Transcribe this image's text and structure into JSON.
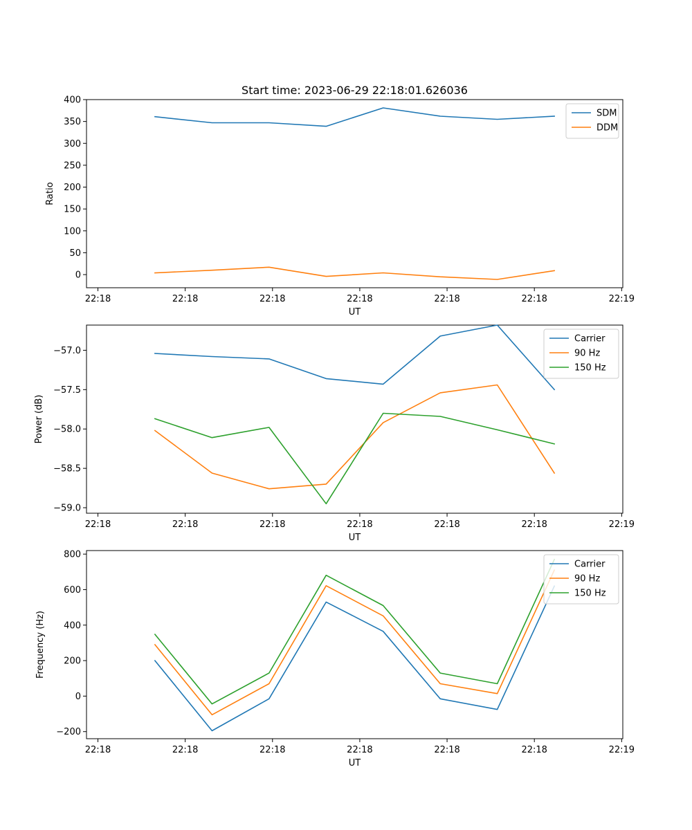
{
  "figure": {
    "title": "Start time: 2023-06-29 22:18:01.626036"
  },
  "chart_data": [
    {
      "type": "line",
      "title": "Start time: 2023-06-29 22:18:01.626036",
      "xlabel": "UT",
      "ylabel": "Ratio",
      "x": [
        1,
        2,
        3,
        4,
        5,
        6,
        7,
        8
      ],
      "x_tick_values": [
        0,
        1.53,
        3.06,
        4.59,
        6.12,
        7.65,
        9.18
      ],
      "x_tick_labels": [
        "22:18",
        "22:18",
        "22:18",
        "22:18",
        "22:18",
        "22:18",
        "22:19"
      ],
      "xlim": [
        -0.2,
        9.2
      ],
      "ylim": [
        -30,
        400
      ],
      "y_tick_values": [
        0,
        50,
        100,
        150,
        200,
        250,
        300,
        350,
        400
      ],
      "y_tick_labels": [
        "0",
        "50",
        "100",
        "150",
        "200",
        "250",
        "300",
        "350",
        "400"
      ],
      "grid": false,
      "legend_position": "top-right",
      "series": [
        {
          "name": "SDM",
          "color": "#1f77b4",
          "values": [
            361,
            347,
            347,
            339,
            381,
            362,
            355,
            362
          ]
        },
        {
          "name": "DDM",
          "color": "#ff7f0e",
          "values": [
            4,
            10,
            17,
            -4,
            4,
            -5,
            -11,
            9
          ]
        }
      ]
    },
    {
      "type": "line",
      "xlabel": "UT",
      "ylabel": "Power (dB)",
      "x": [
        1,
        2,
        3,
        4,
        5,
        6,
        7,
        8
      ],
      "x_tick_values": [
        0,
        1.53,
        3.06,
        4.59,
        6.12,
        7.65,
        9.18
      ],
      "x_tick_labels": [
        "22:18",
        "22:18",
        "22:18",
        "22:18",
        "22:18",
        "22:18",
        "22:19"
      ],
      "xlim": [
        -0.2,
        9.2
      ],
      "ylim": [
        -59.07,
        -56.68
      ],
      "y_tick_values": [
        -59.0,
        -58.5,
        -58.0,
        -57.5,
        -57.0
      ],
      "y_tick_labels": [
        "−59.0",
        "−58.5",
        "−58.0",
        "−57.5",
        "−57.0"
      ],
      "grid": false,
      "legend_position": "top-right",
      "series": [
        {
          "name": "Carrier",
          "color": "#1f77b4",
          "values": [
            -57.04,
            -57.08,
            -57.11,
            -57.36,
            -57.43,
            -56.82,
            -56.68,
            -57.5
          ]
        },
        {
          "name": "90 Hz",
          "color": "#ff7f0e",
          "values": [
            -58.02,
            -58.56,
            -58.76,
            -58.7,
            -57.92,
            -57.54,
            -57.44,
            -58.56
          ]
        },
        {
          "name": "150 Hz",
          "color": "#2ca02c",
          "values": [
            -57.87,
            -58.11,
            -57.98,
            -58.95,
            -57.8,
            -57.84,
            -58.01,
            -58.19
          ]
        }
      ]
    },
    {
      "type": "line",
      "xlabel": "UT",
      "ylabel": "Frequency (Hz)",
      "x": [
        1,
        2,
        3,
        4,
        5,
        6,
        7,
        8
      ],
      "x_tick_values": [
        0,
        1.53,
        3.06,
        4.59,
        6.12,
        7.65,
        9.18
      ],
      "x_tick_labels": [
        "22:18",
        "22:18",
        "22:18",
        "22:18",
        "22:18",
        "22:18",
        "22:19"
      ],
      "xlim": [
        -0.2,
        9.2
      ],
      "ylim": [
        -240,
        820
      ],
      "y_tick_values": [
        -200,
        0,
        200,
        400,
        600,
        800
      ],
      "y_tick_labels": [
        "−200",
        "0",
        "200",
        "400",
        "600",
        "800"
      ],
      "grid": false,
      "legend_position": "top-right",
      "series": [
        {
          "name": "Carrier",
          "color": "#1f77b4",
          "values": [
            200,
            -195,
            -15,
            530,
            365,
            -15,
            -75,
            620
          ]
        },
        {
          "name": "90 Hz",
          "color": "#ff7f0e",
          "values": [
            290,
            -105,
            70,
            622,
            452,
            70,
            14,
            710
          ]
        },
        {
          "name": "150 Hz",
          "color": "#2ca02c",
          "values": [
            348,
            -44,
            130,
            681,
            510,
            130,
            70,
            770
          ]
        }
      ]
    }
  ]
}
